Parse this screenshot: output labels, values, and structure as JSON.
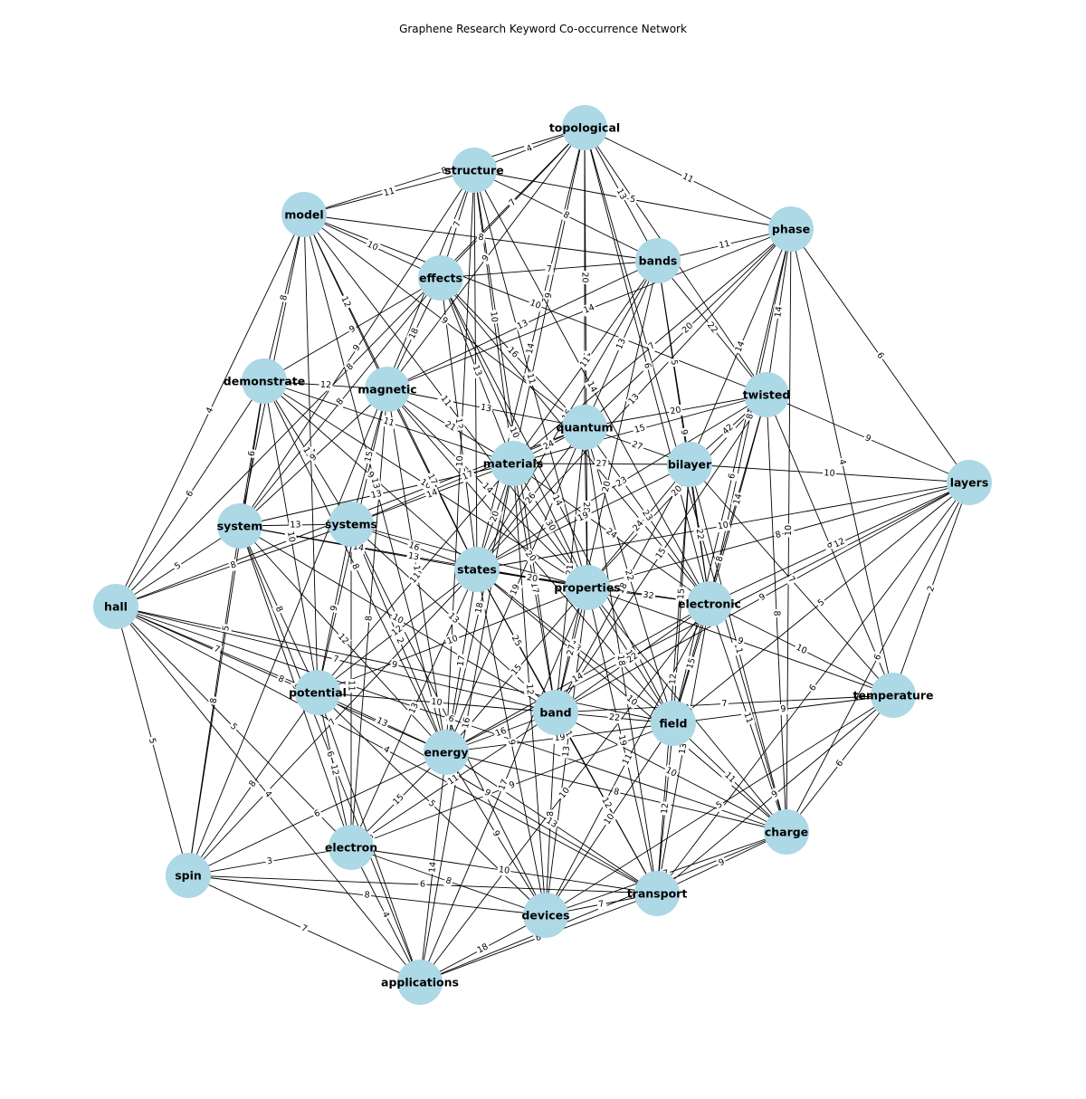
{
  "title": "Graphene Research Keyword Co-occurrence Network",
  "colors": {
    "node": "#add8e6",
    "edge": "#000000",
    "label_bg": "#ffffff",
    "text": "#000000"
  },
  "nodes": [
    {
      "id": "topological",
      "label": "topological"
    },
    {
      "id": "structure",
      "label": "structure"
    },
    {
      "id": "model",
      "label": "model"
    },
    {
      "id": "phase",
      "label": "phase"
    },
    {
      "id": "bands",
      "label": "bands"
    },
    {
      "id": "effects",
      "label": "effects"
    },
    {
      "id": "demonstrate",
      "label": "demonstrate"
    },
    {
      "id": "magnetic",
      "label": "magnetic"
    },
    {
      "id": "twisted",
      "label": "twisted"
    },
    {
      "id": "quantum",
      "label": "quantum"
    },
    {
      "id": "materials",
      "label": "materials"
    },
    {
      "id": "bilayer",
      "label": "bilayer"
    },
    {
      "id": "layers",
      "label": "layers"
    },
    {
      "id": "system",
      "label": "system"
    },
    {
      "id": "systems",
      "label": "systems"
    },
    {
      "id": "states",
      "label": "states"
    },
    {
      "id": "properties",
      "label": "properties"
    },
    {
      "id": "hall",
      "label": "hall"
    },
    {
      "id": "electronic",
      "label": "electronic"
    },
    {
      "id": "potential",
      "label": "potential"
    },
    {
      "id": "temperature",
      "label": "temperature"
    },
    {
      "id": "band",
      "label": "band"
    },
    {
      "id": "field",
      "label": "field"
    },
    {
      "id": "energy",
      "label": "energy"
    },
    {
      "id": "charge",
      "label": "charge"
    },
    {
      "id": "electron",
      "label": "electron"
    },
    {
      "id": "spin",
      "label": "spin"
    },
    {
      "id": "transport",
      "label": "transport"
    },
    {
      "id": "devices",
      "label": "devices"
    },
    {
      "id": "applications",
      "label": "applications"
    }
  ],
  "edges": [
    {
      "s": "topological",
      "t": "structure",
      "w": 4
    },
    {
      "s": "topological",
      "t": "phase",
      "w": 11
    },
    {
      "s": "topological",
      "t": "model",
      "w": 8
    },
    {
      "s": "topological",
      "t": "bands",
      "w": 13
    },
    {
      "s": "topological",
      "t": "effects",
      "w": 7
    },
    {
      "s": "topological",
      "t": "quantum",
      "w": 20
    },
    {
      "s": "topological",
      "t": "states",
      "w": 14
    },
    {
      "s": "topological",
      "t": "materials",
      "w": 9
    },
    {
      "s": "topological",
      "t": "magnetic",
      "w": 9
    },
    {
      "s": "topological",
      "t": "hall",
      "w": 8
    },
    {
      "s": "topological",
      "t": "electronic",
      "w": 6
    },
    {
      "s": "topological",
      "t": "twisted",
      "w": 5
    },
    {
      "s": "topological",
      "t": "properties",
      "w": 13
    },
    {
      "s": "topological",
      "t": "charge",
      "w": 8
    },
    {
      "s": "structure",
      "t": "model",
      "w": 11
    },
    {
      "s": "structure",
      "t": "phase",
      "w": 5
    },
    {
      "s": "structure",
      "t": "bands",
      "w": 8
    },
    {
      "s": "structure",
      "t": "effects",
      "w": 7
    },
    {
      "s": "structure",
      "t": "materials",
      "w": 10
    },
    {
      "s": "structure",
      "t": "band",
      "w": 12
    },
    {
      "s": "structure",
      "t": "electronic",
      "w": 14
    },
    {
      "s": "structure",
      "t": "states",
      "w": 9
    },
    {
      "s": "structure",
      "t": "properties",
      "w": 11
    },
    {
      "s": "structure",
      "t": "energy",
      "w": 10
    },
    {
      "s": "structure",
      "t": "system",
      "w": 9
    },
    {
      "s": "structure",
      "t": "spin",
      "w": 7
    },
    {
      "s": "model",
      "t": "demonstrate",
      "w": 8
    },
    {
      "s": "model",
      "t": "effects",
      "w": 10
    },
    {
      "s": "model",
      "t": "bands",
      "w": 8
    },
    {
      "s": "model",
      "t": "states",
      "w": 11
    },
    {
      "s": "model",
      "t": "system",
      "w": 9
    },
    {
      "s": "model",
      "t": "magnetic",
      "w": 12
    },
    {
      "s": "model",
      "t": "quantum",
      "w": 9
    },
    {
      "s": "model",
      "t": "hall",
      "w": 4
    },
    {
      "s": "model",
      "t": "potential",
      "w": 12
    },
    {
      "s": "model",
      "t": "energy",
      "w": 13
    },
    {
      "s": "model",
      "t": "twisted",
      "w": 10
    },
    {
      "s": "model",
      "t": "properties",
      "w": 11
    },
    {
      "s": "phase",
      "t": "bands",
      "w": 11
    },
    {
      "s": "phase",
      "t": "twisted",
      "w": 14
    },
    {
      "s": "phase",
      "t": "layers",
      "w": 6
    },
    {
      "s": "phase",
      "t": "quantum",
      "w": 20
    },
    {
      "s": "phase",
      "t": "bilayer",
      "w": 14
    },
    {
      "s": "phase",
      "t": "temperature",
      "w": 4
    },
    {
      "s": "phase",
      "t": "materials",
      "w": 7
    },
    {
      "s": "phase",
      "t": "electronic",
      "w": 8
    },
    {
      "s": "phase",
      "t": "magnetic",
      "w": 14
    },
    {
      "s": "phase",
      "t": "charge",
      "w": 10
    },
    {
      "s": "phase",
      "t": "states",
      "w": 13
    },
    {
      "s": "phase",
      "t": "field",
      "w": 6
    },
    {
      "s": "bands",
      "t": "effects",
      "w": 7
    },
    {
      "s": "bands",
      "t": "quantum",
      "w": 13
    },
    {
      "s": "bands",
      "t": "twisted",
      "w": 22
    },
    {
      "s": "bands",
      "t": "bilayer",
      "w": 5
    },
    {
      "s": "bands",
      "t": "states",
      "w": 16
    },
    {
      "s": "bands",
      "t": "materials",
      "w": 11
    },
    {
      "s": "bands",
      "t": "band",
      "w": 20
    },
    {
      "s": "bands",
      "t": "magnetic",
      "w": 13
    },
    {
      "s": "bands",
      "t": "electronic",
      "w": 9
    },
    {
      "s": "effects",
      "t": "quantum",
      "w": 16
    },
    {
      "s": "effects",
      "t": "magnetic",
      "w": 18
    },
    {
      "s": "effects",
      "t": "materials",
      "w": 13
    },
    {
      "s": "effects",
      "t": "states",
      "w": 12
    },
    {
      "s": "effects",
      "t": "demonstrate",
      "w": 9
    },
    {
      "s": "effects",
      "t": "system",
      "w": 8
    },
    {
      "s": "effects",
      "t": "properties",
      "w": 10
    },
    {
      "s": "effects",
      "t": "field",
      "w": 14
    },
    {
      "s": "effects",
      "t": "electronic",
      "w": 7
    },
    {
      "s": "demonstrate",
      "t": "magnetic",
      "w": 12
    },
    {
      "s": "demonstrate",
      "t": "system",
      "w": 6
    },
    {
      "s": "demonstrate",
      "t": "systems",
      "w": 13
    },
    {
      "s": "demonstrate",
      "t": "materials",
      "w": 11
    },
    {
      "s": "demonstrate",
      "t": "hall",
      "w": 6
    },
    {
      "s": "demonstrate",
      "t": "potential",
      "w": 10
    },
    {
      "s": "demonstrate",
      "t": "states",
      "w": 9
    },
    {
      "s": "demonstrate",
      "t": "energy",
      "w": 8
    },
    {
      "s": "demonstrate",
      "t": "properties",
      "w": 10
    },
    {
      "s": "demonstrate",
      "t": "spin",
      "w": 5
    },
    {
      "s": "magnetic",
      "t": "quantum",
      "w": 13
    },
    {
      "s": "magnetic",
      "t": "materials",
      "w": 21
    },
    {
      "s": "magnetic",
      "t": "systems",
      "w": 15
    },
    {
      "s": "magnetic",
      "t": "states",
      "w": 17
    },
    {
      "s": "magnetic",
      "t": "field",
      "w": 20
    },
    {
      "s": "magnetic",
      "t": "properties",
      "w": 14
    },
    {
      "s": "magnetic",
      "t": "energy",
      "w": 10
    },
    {
      "s": "magnetic",
      "t": "system",
      "w": 9
    },
    {
      "s": "magnetic",
      "t": "potential",
      "w": 7
    },
    {
      "s": "magnetic",
      "t": "electron",
      "w": 8
    },
    {
      "s": "twisted",
      "t": "quantum",
      "w": 20
    },
    {
      "s": "twisted",
      "t": "bilayer",
      "w": 42
    },
    {
      "s": "twisted",
      "t": "layers",
      "w": 9
    },
    {
      "s": "twisted",
      "t": "materials",
      "w": 15
    },
    {
      "s": "twisted",
      "t": "electronic",
      "w": 14
    },
    {
      "s": "twisted",
      "t": "states",
      "w": 23
    },
    {
      "s": "twisted",
      "t": "band",
      "w": 15
    },
    {
      "s": "twisted",
      "t": "properties",
      "w": 20
    },
    {
      "s": "twisted",
      "t": "field",
      "w": 8
    },
    {
      "s": "twisted",
      "t": "temperature",
      "w": 6
    },
    {
      "s": "twisted",
      "t": "charge",
      "w": 8
    },
    {
      "s": "quantum",
      "t": "materials",
      "w": 24
    },
    {
      "s": "quantum",
      "t": "bilayer",
      "w": 27
    },
    {
      "s": "quantum",
      "t": "states",
      "w": 26
    },
    {
      "s": "quantum",
      "t": "properties",
      "w": 28
    },
    {
      "s": "quantum",
      "t": "electronic",
      "w": 23
    },
    {
      "s": "quantum",
      "t": "systems",
      "w": 17
    },
    {
      "s": "quantum",
      "t": "hall",
      "w": 10
    },
    {
      "s": "quantum",
      "t": "energy",
      "w": 19
    },
    {
      "s": "quantum",
      "t": "band",
      "w": 21
    },
    {
      "s": "quantum",
      "t": "field",
      "w": 22
    },
    {
      "s": "quantum",
      "t": "transport",
      "w": 18
    },
    {
      "s": "materials",
      "t": "bilayer",
      "w": 27
    },
    {
      "s": "materials",
      "t": "states",
      "w": 20
    },
    {
      "s": "materials",
      "t": "properties",
      "w": 30
    },
    {
      "s": "materials",
      "t": "systems",
      "w": 14
    },
    {
      "s": "materials",
      "t": "electronic",
      "w": 24
    },
    {
      "s": "materials",
      "t": "energy",
      "w": 18
    },
    {
      "s": "materials",
      "t": "band",
      "w": 17
    },
    {
      "s": "materials",
      "t": "devices",
      "w": 12
    },
    {
      "s": "materials",
      "t": "applications",
      "w": 16
    },
    {
      "s": "materials",
      "t": "system",
      "w": 13
    },
    {
      "s": "materials",
      "t": "potential",
      "w": 11
    },
    {
      "s": "bilayer",
      "t": "layers",
      "w": 10
    },
    {
      "s": "bilayer",
      "t": "electronic",
      "w": 22
    },
    {
      "s": "bilayer",
      "t": "properties",
      "w": 24
    },
    {
      "s": "bilayer",
      "t": "states",
      "w": 19
    },
    {
      "s": "bilayer",
      "t": "band",
      "w": 18
    },
    {
      "s": "bilayer",
      "t": "field",
      "w": 15
    },
    {
      "s": "bilayer",
      "t": "temperature",
      "w": 7
    },
    {
      "s": "bilayer",
      "t": "charge",
      "w": 11
    },
    {
      "s": "bilayer",
      "t": "transport",
      "w": 12
    },
    {
      "s": "layers",
      "t": "electronic",
      "w": 12
    },
    {
      "s": "layers",
      "t": "temperature",
      "w": 2
    },
    {
      "s": "layers",
      "t": "charge",
      "w": 6
    },
    {
      "s": "layers",
      "t": "properties",
      "w": 8
    },
    {
      "s": "layers",
      "t": "field",
      "w": 5
    },
    {
      "s": "layers",
      "t": "band",
      "w": 9
    },
    {
      "s": "layers",
      "t": "transport",
      "w": 6
    },
    {
      "s": "layers",
      "t": "states",
      "w": 10
    },
    {
      "s": "layers",
      "t": "energy",
      "w": 7
    },
    {
      "s": "system",
      "t": "systems",
      "w": 13
    },
    {
      "s": "system",
      "t": "hall",
      "w": 5
    },
    {
      "s": "system",
      "t": "potential",
      "w": 8
    },
    {
      "s": "system",
      "t": "states",
      "w": 14
    },
    {
      "s": "system",
      "t": "energy",
      "w": 12
    },
    {
      "s": "system",
      "t": "properties",
      "w": 13
    },
    {
      "s": "system",
      "t": "electron",
      "w": 9
    },
    {
      "s": "system",
      "t": "spin",
      "w": 8
    },
    {
      "s": "system",
      "t": "applications",
      "w": 6
    },
    {
      "s": "system",
      "t": "band",
      "w": 10
    },
    {
      "s": "systems",
      "t": "states",
      "w": 16
    },
    {
      "s": "systems",
      "t": "properties",
      "w": 14
    },
    {
      "s": "systems",
      "t": "energy",
      "w": 12
    },
    {
      "s": "systems",
      "t": "potential",
      "w": 9
    },
    {
      "s": "systems",
      "t": "electron",
      "w": 11
    },
    {
      "s": "systems",
      "t": "hall",
      "w": 8
    },
    {
      "s": "systems",
      "t": "band",
      "w": 13
    },
    {
      "s": "systems",
      "t": "devices",
      "w": 7
    },
    {
      "s": "states",
      "t": "properties",
      "w": 20
    },
    {
      "s": "states",
      "t": "electronic",
      "w": 22
    },
    {
      "s": "states",
      "t": "band",
      "w": 25
    },
    {
      "s": "states",
      "t": "energy",
      "w": 17
    },
    {
      "s": "states",
      "t": "potential",
      "w": 12
    },
    {
      "s": "states",
      "t": "field",
      "w": 18
    },
    {
      "s": "states",
      "t": "electron",
      "w": 13
    },
    {
      "s": "states",
      "t": "charge",
      "w": 10
    },
    {
      "s": "states",
      "t": "transport",
      "w": 11
    },
    {
      "s": "states",
      "t": "spin",
      "w": 7
    },
    {
      "s": "states",
      "t": "devices",
      "w": 9
    },
    {
      "s": "properties",
      "t": "electronic",
      "w": 32
    },
    {
      "s": "properties",
      "t": "band",
      "w": 27
    },
    {
      "s": "properties",
      "t": "field",
      "w": 18
    },
    {
      "s": "properties",
      "t": "energy",
      "w": 15
    },
    {
      "s": "properties",
      "t": "temperature",
      "w": 9
    },
    {
      "s": "properties",
      "t": "charge",
      "w": 12
    },
    {
      "s": "properties",
      "t": "transport",
      "w": 19
    },
    {
      "s": "properties",
      "t": "devices",
      "w": 13
    },
    {
      "s": "properties",
      "t": "applications",
      "w": 17
    },
    {
      "s": "properties",
      "t": "potential",
      "w": 10
    },
    {
      "s": "hall",
      "t": "potential",
      "w": 7
    },
    {
      "s": "hall",
      "t": "spin",
      "w": 5
    },
    {
      "s": "hall",
      "t": "electron",
      "w": 5
    },
    {
      "s": "hall",
      "t": "energy",
      "w": 8
    },
    {
      "s": "hall",
      "t": "field",
      "w": 9
    },
    {
      "s": "hall",
      "t": "band",
      "w": 7
    },
    {
      "s": "hall",
      "t": "charge",
      "w": 6
    },
    {
      "s": "hall",
      "t": "transport",
      "w": 4
    },
    {
      "s": "hall",
      "t": "applications",
      "w": 4
    },
    {
      "s": "electronic",
      "t": "temperature",
      "w": 10
    },
    {
      "s": "electronic",
      "t": "band",
      "w": 22
    },
    {
      "s": "electronic",
      "t": "field",
      "w": 15
    },
    {
      "s": "electronic",
      "t": "charge",
      "w": 11
    },
    {
      "s": "electronic",
      "t": "transport",
      "w": 13
    },
    {
      "s": "electronic",
      "t": "energy",
      "w": 14
    },
    {
      "s": "electronic",
      "t": "devices",
      "w": 11
    },
    {
      "s": "electronic",
      "t": "applications",
      "w": 10
    },
    {
      "s": "potential",
      "t": "energy",
      "w": 13
    },
    {
      "s": "potential",
      "t": "electron",
      "w": 12
    },
    {
      "s": "potential",
      "t": "spin",
      "w": 8
    },
    {
      "s": "potential",
      "t": "band",
      "w": 10
    },
    {
      "s": "potential",
      "t": "applications",
      "w": 6
    },
    {
      "s": "potential",
      "t": "devices",
      "w": 5
    },
    {
      "s": "potential",
      "t": "transport",
      "w": 9
    },
    {
      "s": "temperature",
      "t": "field",
      "w": 9
    },
    {
      "s": "temperature",
      "t": "charge",
      "w": 6
    },
    {
      "s": "temperature",
      "t": "transport",
      "w": 9
    },
    {
      "s": "temperature",
      "t": "band",
      "w": 7
    },
    {
      "s": "temperature",
      "t": "devices",
      "w": 5
    },
    {
      "s": "band",
      "t": "field",
      "w": 22
    },
    {
      "s": "band",
      "t": "energy",
      "w": 16
    },
    {
      "s": "band",
      "t": "charge",
      "w": 10
    },
    {
      "s": "band",
      "t": "transport",
      "w": 12
    },
    {
      "s": "band",
      "t": "devices",
      "w": 8
    },
    {
      "s": "band",
      "t": "electron",
      "w": 11
    },
    {
      "s": "field",
      "t": "energy",
      "w": 19
    },
    {
      "s": "field",
      "t": "charge",
      "w": 11
    },
    {
      "s": "field",
      "t": "transport",
      "w": 12
    },
    {
      "s": "field",
      "t": "devices",
      "w": 10
    },
    {
      "s": "field",
      "t": "electron",
      "w": 9
    },
    {
      "s": "energy",
      "t": "electron",
      "w": 15
    },
    {
      "s": "energy",
      "t": "devices",
      "w": 9
    },
    {
      "s": "energy",
      "t": "applications",
      "w": 14
    },
    {
      "s": "energy",
      "t": "transport",
      "w": 13
    },
    {
      "s": "energy",
      "t": "spin",
      "w": 6
    },
    {
      "s": "energy",
      "t": "charge",
      "w": 8
    },
    {
      "s": "charge",
      "t": "transport",
      "w": 9
    },
    {
      "s": "charge",
      "t": "devices",
      "w": 7
    },
    {
      "s": "charge",
      "t": "applications",
      "w": 9
    },
    {
      "s": "electron",
      "t": "spin",
      "w": 3
    },
    {
      "s": "electron",
      "t": "devices",
      "w": 8
    },
    {
      "s": "electron",
      "t": "transport",
      "w": 10
    },
    {
      "s": "electron",
      "t": "applications",
      "w": 4
    },
    {
      "s": "spin",
      "t": "applications",
      "w": 7
    },
    {
      "s": "spin",
      "t": "devices",
      "w": 8
    },
    {
      "s": "spin",
      "t": "transport",
      "w": 6
    },
    {
      "s": "transport",
      "t": "devices",
      "w": 7
    },
    {
      "s": "transport",
      "t": "applications",
      "w": 8
    },
    {
      "s": "devices",
      "t": "applications",
      "w": 18
    }
  ]
}
